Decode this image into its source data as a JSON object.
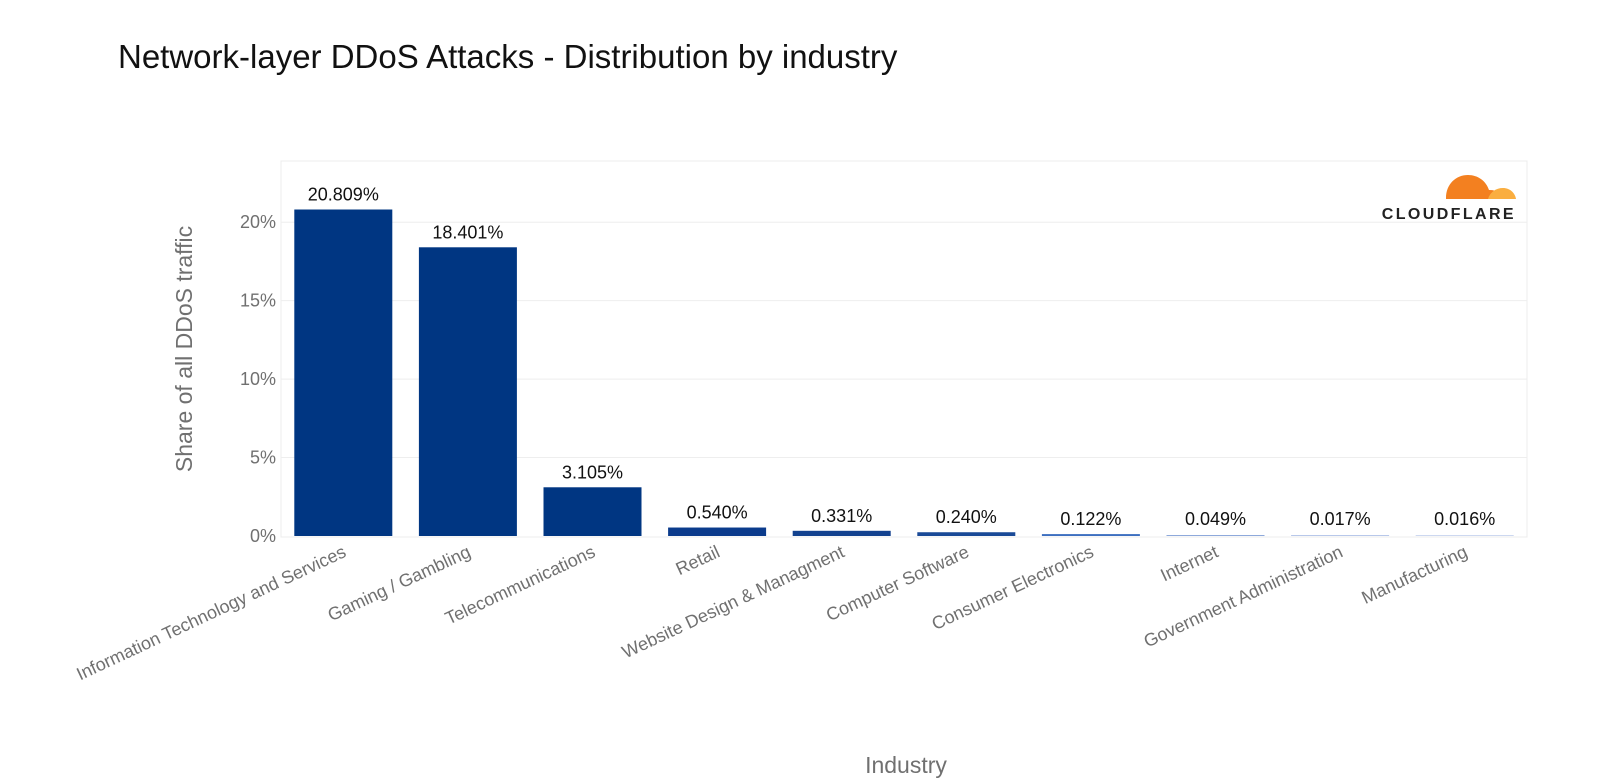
{
  "chart_data": {
    "type": "bar",
    "title": "Network-layer DDoS Attacks - Distribution by industry",
    "xlabel": "Industry",
    "ylabel": "Share of all DDoS traffic",
    "ylim": [
      0,
      24
    ],
    "yticks": [
      0,
      5,
      10,
      15,
      20
    ],
    "ytick_labels": [
      "0%",
      "5%",
      "10%",
      "15%",
      "20%"
    ],
    "grid": true,
    "categories": [
      "Information Technology and Services",
      "Gaming / Gambling",
      "Telecommunications",
      "Retail",
      "Website Design & Managment",
      "Computer Software",
      "Consumer Electronics",
      "Internet",
      "Government Administration",
      "Manufacturing"
    ],
    "values": [
      20.809,
      18.401,
      3.105,
      0.54,
      0.331,
      0.24,
      0.122,
      0.049,
      0.017,
      0.016
    ],
    "value_labels": [
      "20.809%",
      "18.401%",
      "3.105%",
      "0.540%",
      "0.331%",
      "0.240%",
      "0.122%",
      "0.049%",
      "0.017%",
      "0.016%"
    ],
    "bar_colors": [
      "#003682",
      "#003682",
      "#003682",
      "#0b3b8c",
      "#13428f",
      "#1a4a97",
      "#3d6fc0",
      "#8ea9db",
      "#b8c8ea",
      "#cdd8f0"
    ],
    "logo": {
      "text": "CLOUDFLARE",
      "icon": "cloudflare-cloud-icon",
      "colors": [
        "#f38020",
        "#faae40"
      ]
    }
  }
}
